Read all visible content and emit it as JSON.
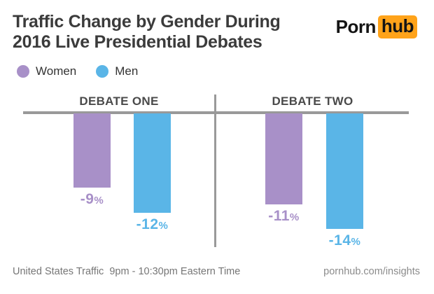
{
  "header": {
    "title_line1": "Traffic Change by Gender During",
    "title_line2": "2016 Live Presidential Debates",
    "logo": {
      "part1": "Porn",
      "part2": "hub",
      "accent_color": "#ffa31a"
    }
  },
  "legend": {
    "items": [
      {
        "label": "Women",
        "color": "#a890c8"
      },
      {
        "label": "Men",
        "color": "#5ab5e7"
      }
    ]
  },
  "chart_data": {
    "type": "bar",
    "title": "Traffic Change by Gender During 2016 Live Presidential Debates",
    "categories": [
      "DEBATE ONE",
      "DEBATE TWO"
    ],
    "series": [
      {
        "name": "Women",
        "color": "#a890c8",
        "values": [
          -9,
          -11
        ],
        "labels": [
          "-9%",
          "-11%"
        ]
      },
      {
        "name": "Men",
        "color": "#5ab5e7",
        "values": [
          -12,
          -14
        ],
        "labels": [
          "-12%",
          "-14%"
        ]
      }
    ],
    "ylim": [
      -15,
      0
    ],
    "unit": "%",
    "baseline": 0,
    "orientation": "vertical",
    "grid": false,
    "legend_position": "top-left",
    "axis_color": "#999999"
  },
  "footer": {
    "left": "United States Traffic  9pm - 10:30pm Eastern Time",
    "right": "pornhub.com/insights"
  }
}
